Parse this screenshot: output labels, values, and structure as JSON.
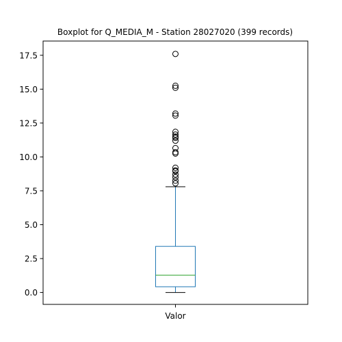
{
  "chart_data": {
    "type": "boxplot",
    "title": "Boxplot for Q_MEDIA_M - Station 28027020 (399 records)",
    "xlabel": "",
    "ylabel": "",
    "categories": [
      "Valor"
    ],
    "ylim": [
      -0.88,
      18.55
    ],
    "yticks": [
      0.0,
      2.5,
      5.0,
      7.5,
      10.0,
      12.5,
      15.0,
      17.5
    ],
    "ytick_labels": [
      "0.0",
      "2.5",
      "5.0",
      "7.5",
      "10.0",
      "12.5",
      "15.0",
      "17.5"
    ],
    "grid": false,
    "box": {
      "whisker_low": 0.0,
      "q1": 0.42,
      "median": 1.28,
      "q3": 3.4,
      "whisker_high": 7.8
    },
    "outliers": [
      17.6,
      15.25,
      15.1,
      13.2,
      13.05,
      11.85,
      11.65,
      11.5,
      11.4,
      11.2,
      10.65,
      10.35,
      10.25,
      9.2,
      9.0,
      8.95,
      8.7,
      8.5,
      8.25,
      8.05
    ],
    "colors": {
      "box": "#1f77b4",
      "median": "#2ca02c",
      "whisker": "#1f77b4",
      "cap": "#000000",
      "outlier": "#000000"
    }
  }
}
